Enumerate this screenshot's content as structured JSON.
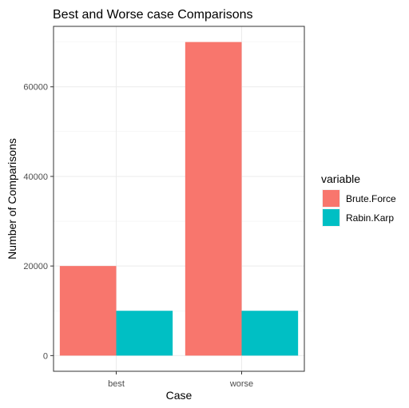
{
  "chart_data": {
    "type": "bar",
    "title": "Best and Worse case Comparisons",
    "xlabel": "Case",
    "ylabel": "Number of Comparisons",
    "categories": [
      "best",
      "worse"
    ],
    "series": [
      {
        "name": "Brute.Force",
        "values": [
          20000,
          70000
        ],
        "color": "#F8766D"
      },
      {
        "name": "Rabin.Karp",
        "values": [
          10000,
          10000
        ],
        "color": "#00BFC4"
      }
    ],
    "yticks": [
      0,
      20000,
      40000,
      60000
    ],
    "ylim": [
      -3500,
      73500
    ],
    "grid": true,
    "legend": {
      "title": "variable",
      "position": "right"
    }
  }
}
